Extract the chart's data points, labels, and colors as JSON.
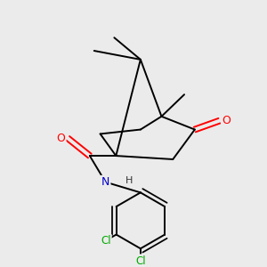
{
  "bg_color": "#ebebeb",
  "atom_colors": {
    "O": "#ff0000",
    "N": "#0000cc",
    "Cl": "#00aa00",
    "C": "#000000",
    "H": "#333333"
  },
  "bond_color": "#000000",
  "bond_width": 1.4,
  "fig_size": [
    3.0,
    3.0
  ],
  "dpi": 100
}
